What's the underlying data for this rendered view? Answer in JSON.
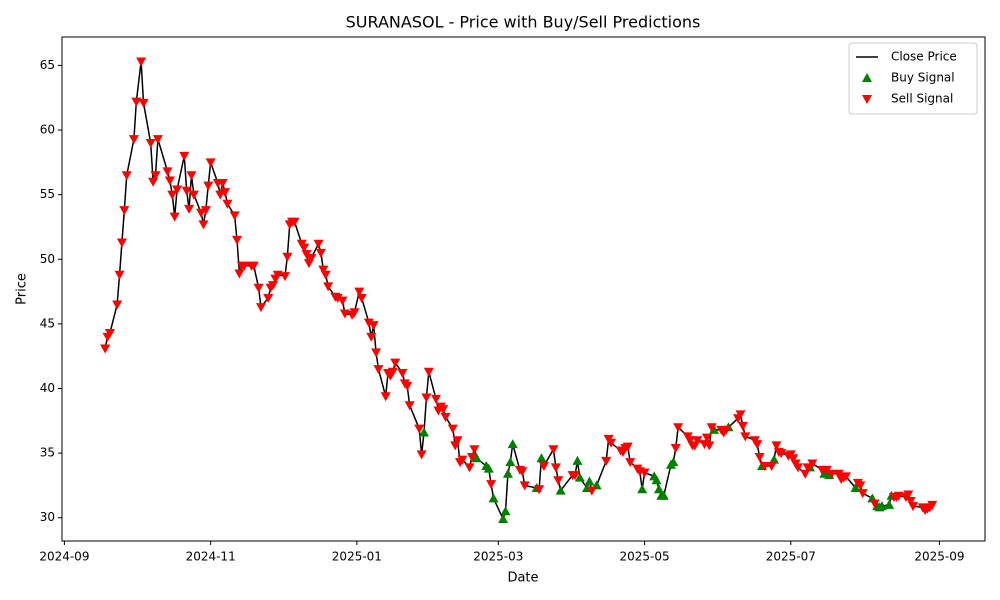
{
  "chart_data": {
    "type": "line",
    "title": "SURANASOL - Price with Buy/Sell Predictions",
    "x_label": "Date",
    "y_label": "Price",
    "xlim": [
      "2024-08-31",
      "2025-09-20"
    ],
    "xticks": [
      {
        "value": "2024-09-01",
        "label": "2024-09"
      },
      {
        "value": "2024-11-01",
        "label": "2024-11"
      },
      {
        "value": "2025-01-01",
        "label": "2025-01"
      },
      {
        "value": "2025-03-01",
        "label": "2025-03"
      },
      {
        "value": "2025-05-01",
        "label": "2025-05"
      },
      {
        "value": "2025-07-01",
        "label": "2025-07"
      },
      {
        "value": "2025-09-01",
        "label": "2025-09"
      }
    ],
    "ylim": [
      28.2,
      67.2
    ],
    "yticks": [
      30,
      35,
      40,
      45,
      50,
      55,
      60,
      65
    ],
    "grid": false,
    "legend": "upper right",
    "series": [
      {
        "name": "Close Price",
        "type": "line",
        "color": "#000000",
        "x": [
          "2024-09-18",
          "2024-09-19",
          "2024-09-20",
          "2024-09-23",
          "2024-09-24",
          "2024-09-25",
          "2024-09-26",
          "2024-09-27",
          "2024-09-30",
          "2024-10-01",
          "2024-10-03",
          "2024-10-04",
          "2024-10-07",
          "2024-10-08",
          "2024-10-09",
          "2024-10-10",
          "2024-10-14",
          "2024-10-15",
          "2024-10-16",
          "2024-10-17",
          "2024-10-18",
          "2024-10-21",
          "2024-10-22",
          "2024-10-23",
          "2024-10-24",
          "2024-10-25",
          "2024-10-28",
          "2024-10-29",
          "2024-10-30",
          "2024-10-31",
          "2024-11-01",
          "2024-11-04",
          "2024-11-05",
          "2024-11-06",
          "2024-11-07",
          "2024-11-08",
          "2024-11-11",
          "2024-11-12",
          "2024-11-13",
          "2024-11-14",
          "2024-11-15",
          "2024-11-18",
          "2024-11-19",
          "2024-11-21",
          "2024-11-22",
          "2024-11-25",
          "2024-11-26",
          "2024-11-27",
          "2024-11-28",
          "2024-11-29",
          "2024-12-02",
          "2024-12-03",
          "2024-12-04",
          "2024-12-05",
          "2024-12-06",
          "2024-12-09",
          "2024-12-10",
          "2024-12-11",
          "2024-12-12",
          "2024-12-13",
          "2024-12-16",
          "2024-12-17",
          "2024-12-18",
          "2024-12-19",
          "2024-12-20",
          "2024-12-23",
          "2024-12-24",
          "2024-12-26",
          "2024-12-27",
          "2024-12-30",
          "2024-12-31",
          "2025-01-02",
          "2025-01-03",
          "2025-01-06",
          "2025-01-07",
          "2025-01-08",
          "2025-01-09",
          "2025-01-10",
          "2025-01-13",
          "2025-01-14",
          "2025-01-15",
          "2025-01-16",
          "2025-01-17",
          "2025-01-20",
          "2025-01-21",
          "2025-01-22",
          "2025-01-23",
          "2025-01-27",
          "2025-01-28",
          "2025-01-29",
          "2025-01-30",
          "2025-01-31",
          "2025-02-03",
          "2025-02-04",
          "2025-02-05",
          "2025-02-06",
          "2025-02-07",
          "2025-02-10",
          "2025-02-11",
          "2025-02-12",
          "2025-02-13",
          "2025-02-14",
          "2025-02-17",
          "2025-02-18",
          "2025-02-19",
          "2025-02-20",
          "2025-02-24",
          "2025-02-25",
          "2025-02-26",
          "2025-02-27",
          "2025-03-03",
          "2025-03-04",
          "2025-03-05",
          "2025-03-06",
          "2025-03-07",
          "2025-03-10",
          "2025-03-11",
          "2025-03-12",
          "2025-03-17",
          "2025-03-18",
          "2025-03-19",
          "2025-03-20",
          "2025-03-24",
          "2025-03-25",
          "2025-03-26",
          "2025-03-27",
          "2025-04-01",
          "2025-04-02",
          "2025-04-03",
          "2025-04-04",
          "2025-04-07",
          "2025-04-08",
          "2025-04-09",
          "2025-04-11",
          "2025-04-15",
          "2025-04-16",
          "2025-04-17",
          "2025-04-21",
          "2025-04-22",
          "2025-04-23",
          "2025-04-24",
          "2025-04-25",
          "2025-04-28",
          "2025-04-29",
          "2025-04-30",
          "2025-05-01",
          "2025-05-05",
          "2025-05-06",
          "2025-05-07",
          "2025-05-08",
          "2025-05-09",
          "2025-05-12",
          "2025-05-13",
          "2025-05-14",
          "2025-05-15",
          "2025-05-19",
          "2025-05-20",
          "2025-05-21",
          "2025-05-22",
          "2025-05-23",
          "2025-05-26",
          "2025-05-27",
          "2025-05-28",
          "2025-05-29",
          "2025-05-30",
          "2025-06-02",
          "2025-06-03",
          "2025-06-04",
          "2025-06-05",
          "2025-06-09",
          "2025-06-10",
          "2025-06-11",
          "2025-06-12",
          "2025-06-16",
          "2025-06-17",
          "2025-06-18",
          "2025-06-19",
          "2025-06-20",
          "2025-06-23",
          "2025-06-24",
          "2025-06-25",
          "2025-06-26",
          "2025-06-27",
          "2025-06-30",
          "2025-07-01",
          "2025-07-02",
          "2025-07-03",
          "2025-07-04",
          "2025-07-07",
          "2025-07-08",
          "2025-07-09",
          "2025-07-10",
          "2025-07-14",
          "2025-07-15",
          "2025-07-16",
          "2025-07-17",
          "2025-07-18",
          "2025-07-21",
          "2025-07-22",
          "2025-07-23",
          "2025-07-24",
          "2025-07-28",
          "2025-07-29",
          "2025-07-30",
          "2025-07-31",
          "2025-08-04",
          "2025-08-05",
          "2025-08-06",
          "2025-08-07",
          "2025-08-08",
          "2025-08-11",
          "2025-08-12",
          "2025-08-13",
          "2025-08-14",
          "2025-08-15",
          "2025-08-18",
          "2025-08-19",
          "2025-08-20",
          "2025-08-21",
          "2025-08-25",
          "2025-08-26",
          "2025-08-27",
          "2025-08-28",
          "2025-08-29"
        ],
        "values": [
          43.1,
          44.0,
          44.3,
          46.5,
          48.8,
          51.3,
          53.8,
          56.5,
          59.3,
          62.2,
          65.3,
          62.1,
          59.0,
          56.0,
          56.5,
          59.3,
          56.8,
          56.1,
          55.0,
          53.3,
          55.4,
          58.0,
          55.3,
          53.9,
          56.5,
          55.0,
          53.6,
          52.7,
          53.8,
          55.7,
          57.5,
          55.9,
          55.0,
          55.9,
          55.2,
          54.3,
          53.4,
          51.5,
          48.9,
          49.5,
          49.5,
          49.5,
          49.5,
          47.8,
          46.3,
          47.0,
          47.8,
          48.0,
          48.5,
          48.8,
          48.7,
          50.2,
          52.7,
          52.9,
          52.9,
          51.2,
          50.9,
          50.4,
          49.7,
          50.1,
          51.2,
          50.5,
          49.2,
          48.8,
          47.9,
          47.1,
          47.0,
          46.8,
          45.8,
          45.7,
          45.9,
          47.5,
          47.0,
          45.1,
          44.0,
          44.9,
          42.8,
          41.5,
          39.4,
          41.2,
          41.0,
          41.3,
          42.0,
          41.2,
          40.4,
          40.2,
          38.7,
          36.9,
          34.9,
          36.6,
          39.3,
          41.3,
          39.2,
          38.3,
          38.6,
          38.4,
          37.8,
          36.9,
          35.6,
          36.0,
          34.3,
          34.5,
          33.9,
          34.7,
          35.3,
          34.6,
          34.0,
          33.8,
          32.6,
          31.5,
          29.9,
          30.5,
          33.4,
          34.3,
          35.7,
          33.7,
          33.6,
          32.5,
          32.3,
          32.2,
          34.6,
          34.0,
          35.3,
          33.9,
          32.9,
          32.1,
          33.3,
          33.3,
          34.4,
          33.1,
          32.3,
          32.8,
          32.1,
          32.5,
          34.4,
          36.1,
          35.8,
          35.2,
          35.1,
          35.4,
          35.5,
          34.3,
          33.8,
          33.6,
          32.2,
          33.5,
          33.2,
          32.9,
          32.2,
          31.7,
          31.7,
          34.1,
          34.3,
          35.4,
          37.0,
          36.3,
          36.0,
          35.6,
          35.6,
          36.0,
          35.7,
          36.2,
          35.6,
          37.0,
          36.8,
          36.8,
          36.6,
          36.8,
          37.0,
          37.7,
          38.0,
          37.1,
          36.3,
          36.0,
          35.7,
          34.7,
          34.0,
          34.0,
          34.0,
          34.5,
          35.6,
          35.1,
          35.0,
          34.8,
          34.9,
          34.6,
          34.2,
          33.9,
          33.4,
          33.9,
          33.9,
          34.2,
          33.7,
          33.4,
          33.7,
          33.3,
          33.4,
          33.4,
          33.0,
          33.1,
          33.2,
          32.3,
          32.7,
          32.5,
          31.9,
          31.5,
          31.1,
          30.9,
          30.8,
          30.9,
          31.0,
          31.7,
          31.6,
          31.6,
          31.7,
          31.6,
          31.8,
          31.3,
          30.9,
          30.8,
          30.6,
          30.7,
          30.8,
          31.0
        ]
      },
      {
        "name": "Buy Signal",
        "type": "scatter",
        "marker": "triangle-up",
        "color": "#008000",
        "x": [
          "2025-01-29",
          "2025-02-20",
          "2025-02-24",
          "2025-02-25",
          "2025-02-27",
          "2025-03-03",
          "2025-03-04",
          "2025-03-05",
          "2025-03-06",
          "2025-03-07",
          "2025-03-17",
          "2025-03-19",
          "2025-03-27",
          "2025-04-03",
          "2025-04-04",
          "2025-04-07",
          "2025-04-08",
          "2025-04-11",
          "2025-04-30",
          "2025-05-05",
          "2025-05-06",
          "2025-05-07",
          "2025-05-08",
          "2025-05-09",
          "2025-05-12",
          "2025-05-13",
          "2025-05-30",
          "2025-06-05",
          "2025-06-19",
          "2025-06-24",
          "2025-07-09",
          "2025-07-15",
          "2025-07-17",
          "2025-07-28",
          "2025-08-04",
          "2025-08-06",
          "2025-08-07",
          "2025-08-08",
          "2025-08-11",
          "2025-08-12"
        ],
        "values": [
          36.6,
          34.6,
          34.0,
          33.8,
          31.5,
          29.9,
          30.5,
          33.4,
          34.3,
          35.7,
          32.3,
          34.6,
          32.1,
          34.4,
          33.1,
          32.3,
          32.8,
          32.5,
          32.2,
          33.2,
          32.9,
          32.2,
          31.7,
          31.7,
          34.1,
          34.3,
          36.8,
          37.0,
          34.0,
          34.5,
          33.9,
          33.4,
          33.3,
          32.3,
          31.5,
          30.9,
          30.8,
          30.9,
          31.0,
          31.7
        ]
      },
      {
        "name": "Sell Signal",
        "type": "scatter",
        "marker": "triangle-down",
        "color": "#ff0000",
        "x": [
          "2024-09-18",
          "2024-09-19",
          "2024-09-20",
          "2024-09-23",
          "2024-09-24",
          "2024-09-25",
          "2024-09-26",
          "2024-09-27",
          "2024-09-30",
          "2024-10-01",
          "2024-10-03",
          "2024-10-04",
          "2024-10-07",
          "2024-10-08",
          "2024-10-09",
          "2024-10-10",
          "2024-10-14",
          "2024-10-15",
          "2024-10-16",
          "2024-10-17",
          "2024-10-18",
          "2024-10-21",
          "2024-10-22",
          "2024-10-23",
          "2024-10-24",
          "2024-10-25",
          "2024-10-28",
          "2024-10-29",
          "2024-10-30",
          "2024-10-31",
          "2024-11-01",
          "2024-11-04",
          "2024-11-05",
          "2024-11-06",
          "2024-11-07",
          "2024-11-08",
          "2024-11-11",
          "2024-11-12",
          "2024-11-13",
          "2024-11-14",
          "2024-11-15",
          "2024-11-18",
          "2024-11-19",
          "2024-11-21",
          "2024-11-22",
          "2024-11-25",
          "2024-11-26",
          "2024-11-27",
          "2024-11-28",
          "2024-11-29",
          "2024-12-02",
          "2024-12-03",
          "2024-12-04",
          "2024-12-05",
          "2024-12-06",
          "2024-12-09",
          "2024-12-10",
          "2024-12-11",
          "2024-12-12",
          "2024-12-13",
          "2024-12-16",
          "2024-12-17",
          "2024-12-18",
          "2024-12-19",
          "2024-12-20",
          "2024-12-23",
          "2024-12-24",
          "2024-12-26",
          "2024-12-27",
          "2024-12-30",
          "2024-12-31",
          "2025-01-02",
          "2025-01-03",
          "2025-01-06",
          "2025-01-07",
          "2025-01-08",
          "2025-01-09",
          "2025-01-10",
          "2025-01-13",
          "2025-01-14",
          "2025-01-15",
          "2025-01-16",
          "2025-01-17",
          "2025-01-20",
          "2025-01-21",
          "2025-01-22",
          "2025-01-23",
          "2025-01-27",
          "2025-01-28",
          "2025-01-30",
          "2025-01-31",
          "2025-02-03",
          "2025-02-04",
          "2025-02-05",
          "2025-02-06",
          "2025-02-07",
          "2025-02-10",
          "2025-02-11",
          "2025-02-12",
          "2025-02-13",
          "2025-02-14",
          "2025-02-17",
          "2025-02-18",
          "2025-02-19",
          "2025-02-26",
          "2025-03-10",
          "2025-03-11",
          "2025-03-12",
          "2025-03-18",
          "2025-03-20",
          "2025-03-24",
          "2025-03-25",
          "2025-03-26",
          "2025-04-01",
          "2025-04-02",
          "2025-04-09",
          "2025-04-15",
          "2025-04-16",
          "2025-04-17",
          "2025-04-21",
          "2025-04-22",
          "2025-04-23",
          "2025-04-24",
          "2025-04-25",
          "2025-04-28",
          "2025-04-29",
          "2025-05-01",
          "2025-05-14",
          "2025-05-15",
          "2025-05-19",
          "2025-05-20",
          "2025-05-21",
          "2025-05-22",
          "2025-05-23",
          "2025-05-26",
          "2025-05-27",
          "2025-05-28",
          "2025-05-29",
          "2025-06-02",
          "2025-06-03",
          "2025-06-04",
          "2025-06-09",
          "2025-06-10",
          "2025-06-11",
          "2025-06-12",
          "2025-06-16",
          "2025-06-17",
          "2025-06-18",
          "2025-06-20",
          "2025-06-23",
          "2025-06-25",
          "2025-06-26",
          "2025-06-27",
          "2025-06-30",
          "2025-07-01",
          "2025-07-02",
          "2025-07-03",
          "2025-07-04",
          "2025-07-07",
          "2025-07-08",
          "2025-07-10",
          "2025-07-14",
          "2025-07-16",
          "2025-07-18",
          "2025-07-21",
          "2025-07-22",
          "2025-07-23",
          "2025-07-24",
          "2025-07-29",
          "2025-07-30",
          "2025-07-31",
          "2025-08-05",
          "2025-08-13",
          "2025-08-14",
          "2025-08-15",
          "2025-08-18",
          "2025-08-19",
          "2025-08-20",
          "2025-08-21",
          "2025-08-25",
          "2025-08-26",
          "2025-08-27",
          "2025-08-28",
          "2025-08-29"
        ],
        "values": [
          43.1,
          44.0,
          44.3,
          46.5,
          48.8,
          51.3,
          53.8,
          56.5,
          59.3,
          62.2,
          65.3,
          62.1,
          59.0,
          56.0,
          56.5,
          59.3,
          56.8,
          56.1,
          55.0,
          53.3,
          55.4,
          58.0,
          55.3,
          53.9,
          56.5,
          55.0,
          53.6,
          52.7,
          53.8,
          55.7,
          57.5,
          55.9,
          55.0,
          55.9,
          55.2,
          54.3,
          53.4,
          51.5,
          48.9,
          49.5,
          49.5,
          49.5,
          49.5,
          47.8,
          46.3,
          47.0,
          47.8,
          48.0,
          48.5,
          48.8,
          48.7,
          50.2,
          52.7,
          52.9,
          52.9,
          51.2,
          50.9,
          50.4,
          49.7,
          50.1,
          51.2,
          50.5,
          49.2,
          48.8,
          47.9,
          47.1,
          47.0,
          46.8,
          45.8,
          45.7,
          45.9,
          47.5,
          47.0,
          45.1,
          44.0,
          44.9,
          42.8,
          41.5,
          39.4,
          41.2,
          41.0,
          41.3,
          42.0,
          41.2,
          40.4,
          40.2,
          38.7,
          36.9,
          34.9,
          39.3,
          41.3,
          39.2,
          38.3,
          38.6,
          38.4,
          37.8,
          36.9,
          35.6,
          36.0,
          34.3,
          34.5,
          33.9,
          34.7,
          35.3,
          32.6,
          33.7,
          33.6,
          32.5,
          32.2,
          34.0,
          35.3,
          33.9,
          32.9,
          33.3,
          33.3,
          32.1,
          34.4,
          36.1,
          35.8,
          35.2,
          35.1,
          35.4,
          35.5,
          34.3,
          33.8,
          33.6,
          33.5,
          35.4,
          37.0,
          36.3,
          36.0,
          35.6,
          35.6,
          36.0,
          35.7,
          36.2,
          35.6,
          37.0,
          36.8,
          36.6,
          36.8,
          37.7,
          38.0,
          37.1,
          36.3,
          36.0,
          35.7,
          34.7,
          34.0,
          34.0,
          35.6,
          35.1,
          35.0,
          34.8,
          34.9,
          34.6,
          34.2,
          33.9,
          33.4,
          33.9,
          34.2,
          33.7,
          33.7,
          33.4,
          33.4,
          33.0,
          33.1,
          33.2,
          32.7,
          32.5,
          31.9,
          31.1,
          31.6,
          31.6,
          31.7,
          31.6,
          31.8,
          31.3,
          30.9,
          30.8,
          30.6,
          30.7,
          30.8,
          31.0
        ]
      }
    ]
  }
}
